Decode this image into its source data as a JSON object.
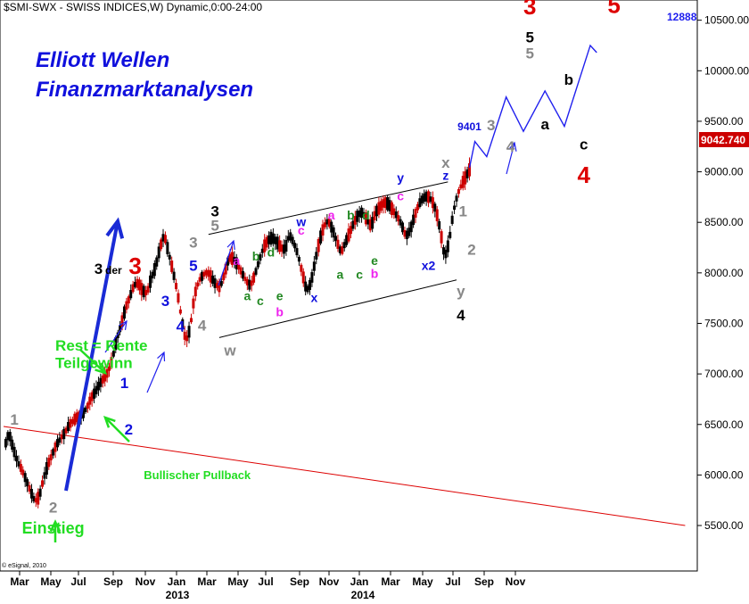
{
  "header": {
    "title": "$SMI-SWX - SWISS INDICES,W) Dynamic,0:00-24:00"
  },
  "headline": {
    "line1": "Elliott Wellen",
    "line2": "Finanzmarktanalysen"
  },
  "copyright": "© eSignal, 2010",
  "colors": {
    "up_candle": "#000000",
    "down_candle": "#cc0000",
    "price_line": "#0000ff",
    "forecast": "#2020ee",
    "channel": "#000000",
    "trendline": "#dd0000",
    "note": "#22dd22",
    "last_price_bg": "#cc0000"
  },
  "chart_data": {
    "type": "candlestick",
    "y_axis": {
      "ylim": [
        5050,
        10700
      ],
      "ticks": [
        5500,
        6000,
        6500,
        7000,
        7500,
        8000,
        8500,
        9000,
        9500,
        10000,
        10500
      ],
      "tick_labels": [
        "5500.00",
        "6000.00",
        "6500.00",
        "7000.00",
        "7500.00",
        "8000.00",
        "8500.00",
        "9000.00",
        "9500.00",
        "10000.00",
        "10500.00"
      ],
      "side": "right"
    },
    "x_axis": {
      "months": [
        "Mar",
        "May",
        "Jul",
        "Sep",
        "Nov",
        "Jan",
        "Mar",
        "May",
        "Jul",
        "Sep",
        "Nov",
        "Jan",
        "Mar",
        "May",
        "Jul",
        "Sep",
        "Nov"
      ],
      "years": [
        "2013",
        "2014"
      ]
    },
    "last_price": "9042.740",
    "forecast_target_label": "12888",
    "forecast_point_label": "9401",
    "price_path": [
      [
        0,
        6280
      ],
      [
        4,
        6420
      ],
      [
        8,
        6260
      ],
      [
        12,
        6130
      ],
      [
        16,
        6050
      ],
      [
        20,
        5950
      ],
      [
        24,
        5840
      ],
      [
        28,
        5740
      ],
      [
        32,
        5780
      ],
      [
        36,
        5960
      ],
      [
        40,
        6100
      ],
      [
        44,
        6200
      ],
      [
        48,
        6300
      ],
      [
        52,
        6360
      ],
      [
        56,
        6420
      ],
      [
        60,
        6500
      ],
      [
        64,
        6540
      ],
      [
        68,
        6580
      ],
      [
        72,
        6600
      ],
      [
        76,
        6660
      ],
      [
        80,
        6760
      ],
      [
        84,
        6820
      ],
      [
        88,
        6900
      ],
      [
        92,
        6960
      ],
      [
        96,
        7020
      ],
      [
        100,
        7150
      ],
      [
        104,
        7350
      ],
      [
        108,
        7480
      ],
      [
        112,
        7650
      ],
      [
        116,
        7760
      ],
      [
        120,
        7880
      ],
      [
        124,
        7900
      ],
      [
        128,
        7820
      ],
      [
        132,
        7800
      ],
      [
        136,
        7950
      ],
      [
        140,
        8060
      ],
      [
        144,
        8250
      ],
      [
        148,
        8380
      ],
      [
        152,
        8200
      ],
      [
        156,
        8020
      ],
      [
        160,
        7820
      ],
      [
        164,
        7550
      ],
      [
        168,
        7320
      ],
      [
        172,
        7450
      ],
      [
        176,
        7780
      ],
      [
        180,
        7920
      ],
      [
        184,
        7980
      ],
      [
        188,
        8010
      ],
      [
        192,
        7950
      ],
      [
        196,
        7880
      ],
      [
        200,
        7860
      ],
      [
        204,
        8000
      ],
      [
        208,
        8150
      ],
      [
        212,
        8140
      ],
      [
        216,
        8080
      ],
      [
        220,
        8000
      ],
      [
        224,
        7920
      ],
      [
        228,
        7870
      ],
      [
        232,
        7980
      ],
      [
        236,
        8120
      ],
      [
        240,
        8250
      ],
      [
        244,
        8320
      ],
      [
        248,
        8350
      ],
      [
        252,
        8310
      ],
      [
        256,
        8250
      ],
      [
        260,
        8230
      ],
      [
        264,
        8380
      ],
      [
        268,
        8300
      ],
      [
        272,
        8180
      ],
      [
        276,
        8000
      ],
      [
        280,
        7820
      ],
      [
        284,
        7900
      ],
      [
        288,
        8120
      ],
      [
        292,
        8320
      ],
      [
        296,
        8460
      ],
      [
        300,
        8520
      ],
      [
        304,
        8430
      ],
      [
        308,
        8310
      ],
      [
        312,
        8200
      ],
      [
        316,
        8300
      ],
      [
        320,
        8400
      ],
      [
        324,
        8500
      ],
      [
        328,
        8580
      ],
      [
        332,
        8600
      ],
      [
        336,
        8520
      ],
      [
        340,
        8460
      ],
      [
        344,
        8600
      ],
      [
        348,
        8650
      ],
      [
        352,
        8700
      ],
      [
        356,
        8680
      ],
      [
        360,
        8620
      ],
      [
        364,
        8560
      ],
      [
        368,
        8480
      ],
      [
        372,
        8360
      ],
      [
        376,
        8420
      ],
      [
        380,
        8560
      ],
      [
        384,
        8680
      ],
      [
        388,
        8740
      ],
      [
        392,
        8760
      ],
      [
        396,
        8720
      ],
      [
        400,
        8620
      ],
      [
        404,
        8420
      ],
      [
        408,
        8150
      ],
      [
        412,
        8300
      ],
      [
        416,
        8600
      ],
      [
        420,
        8780
      ],
      [
        424,
        8880
      ],
      [
        428,
        8960
      ],
      [
        432,
        9040
      ]
    ],
    "forecast_path": [
      [
        432,
        9040
      ],
      [
        437,
        9300
      ],
      [
        448,
        9150
      ],
      [
        466,
        9740
      ],
      [
        482,
        9400
      ],
      [
        502,
        9800
      ],
      [
        520,
        9450
      ],
      [
        544,
        10250
      ],
      [
        550,
        10180
      ]
    ],
    "channel_lines": [
      {
        "name": "upper",
        "from": [
          190,
          8380
        ],
        "to": [
          412,
          8900
        ]
      },
      {
        "name": "lower",
        "from": [
          200,
          7360
        ],
        "to": [
          420,
          7930
        ]
      }
    ],
    "trendline": {
      "from": [
        0,
        6480
      ],
      "to": [
        632,
        5500
      ]
    },
    "wave_labels": [
      {
        "text": "1",
        "x": 10,
        "y": 6500,
        "color": "#888888",
        "size": 17
      },
      {
        "text": "2",
        "x": 46,
        "y": 5630,
        "color": "#888888",
        "size": 17
      },
      {
        "text": "Einstieg",
        "x": 46,
        "y": 5420,
        "color": "#22dd22",
        "size": 18
      },
      {
        "text": "1",
        "x": 112,
        "y": 6860,
        "color": "#1010dd",
        "size": 17
      },
      {
        "text": "2",
        "x": 116,
        "y": 6400,
        "color": "#1010dd",
        "size": 17
      },
      {
        "text": "3",
        "x": 150,
        "y": 7670,
        "color": "#1010dd",
        "size": 17
      },
      {
        "text": "4",
        "x": 164,
        "y": 7420,
        "color": "#1010dd",
        "size": 17
      },
      {
        "text": "3",
        "x": 176,
        "y": 8250,
        "color": "#888888",
        "size": 17
      },
      {
        "text": "5",
        "x": 176,
        "y": 8020,
        "color": "#1010dd",
        "size": 17
      },
      {
        "text": "4",
        "x": 184,
        "y": 7430,
        "color": "#888888",
        "size": 17
      },
      {
        "text": "3",
        "x": 196,
        "y": 8560,
        "color": "#000000",
        "size": 17
      },
      {
        "text": "5",
        "x": 196,
        "y": 8420,
        "color": "#888888",
        "size": 17
      },
      {
        "text": "w",
        "x": 210,
        "y": 7180,
        "color": "#888888",
        "size": 17
      },
      {
        "text": "a",
        "x": 216,
        "y": 8080,
        "color": "#ee22ee",
        "size": 14
      },
      {
        "text": "b",
        "x": 234,
        "y": 8120,
        "color": "#228822",
        "size": 14
      },
      {
        "text": "d",
        "x": 248,
        "y": 8160,
        "color": "#228822",
        "size": 14
      },
      {
        "text": "a",
        "x": 226,
        "y": 7730,
        "color": "#228822",
        "size": 14
      },
      {
        "text": "c",
        "x": 238,
        "y": 7680,
        "color": "#228822",
        "size": 14
      },
      {
        "text": "e",
        "x": 256,
        "y": 7730,
        "color": "#228822",
        "size": 14
      },
      {
        "text": "b",
        "x": 256,
        "y": 7570,
        "color": "#ee22ee",
        "size": 14
      },
      {
        "text": "w",
        "x": 276,
        "y": 8460,
        "color": "#1010dd",
        "size": 14
      },
      {
        "text": "c",
        "x": 276,
        "y": 8380,
        "color": "#ee22ee",
        "size": 14
      },
      {
        "text": "x",
        "x": 288,
        "y": 7710,
        "color": "#1010dd",
        "size": 14
      },
      {
        "text": "a",
        "x": 304,
        "y": 8530,
        "color": "#ee22ee",
        "size": 14
      },
      {
        "text": "b",
        "x": 322,
        "y": 8530,
        "color": "#228822",
        "size": 14
      },
      {
        "text": "d",
        "x": 336,
        "y": 8530,
        "color": "#228822",
        "size": 14
      },
      {
        "text": "a",
        "x": 312,
        "y": 7940,
        "color": "#228822",
        "size": 14
      },
      {
        "text": "c",
        "x": 330,
        "y": 7940,
        "color": "#228822",
        "size": 14
      },
      {
        "text": "e",
        "x": 344,
        "y": 8080,
        "color": "#228822",
        "size": 14
      },
      {
        "text": "b",
        "x": 344,
        "y": 7950,
        "color": "#ee22ee",
        "size": 14
      },
      {
        "text": "y",
        "x": 368,
        "y": 8900,
        "color": "#1010dd",
        "size": 14
      },
      {
        "text": "c",
        "x": 368,
        "y": 8720,
        "color": "#ee22ee",
        "size": 14
      },
      {
        "text": "x2",
        "x": 394,
        "y": 8030,
        "color": "#1010dd",
        "size": 14
      },
      {
        "text": "x",
        "x": 410,
        "y": 9040,
        "color": "#888888",
        "size": 17
      },
      {
        "text": "z",
        "x": 410,
        "y": 8920,
        "color": "#1010dd",
        "size": 14
      },
      {
        "text": "1",
        "x": 426,
        "y": 8560,
        "color": "#888888",
        "size": 17
      },
      {
        "text": "2",
        "x": 434,
        "y": 8180,
        "color": "#888888",
        "size": 17
      },
      {
        "text": "y",
        "x": 424,
        "y": 7770,
        "color": "#888888",
        "size": 17
      },
      {
        "text": "4",
        "x": 424,
        "y": 7530,
        "color": "#000000",
        "size": 17
      },
      {
        "text": "3",
        "x": 452,
        "y": 9410,
        "color": "#888888",
        "size": 17
      },
      {
        "text": "9401",
        "x": 432,
        "y": 9410,
        "color": "#1010dd",
        "size": 12
      },
      {
        "text": "4",
        "x": 470,
        "y": 9200,
        "color": "#888888",
        "size": 17
      },
      {
        "text": "3",
        "x": 488,
        "y": 10560,
        "color": "#dd0000",
        "size": 26
      },
      {
        "text": "5",
        "x": 488,
        "y": 10280,
        "color": "#000000",
        "size": 17
      },
      {
        "text": "5",
        "x": 488,
        "y": 10120,
        "color": "#888888",
        "size": 17
      },
      {
        "text": "a",
        "x": 502,
        "y": 9420,
        "color": "#000000",
        "size": 17
      },
      {
        "text": "b",
        "x": 524,
        "y": 9860,
        "color": "#000000",
        "size": 17
      },
      {
        "text": "c",
        "x": 538,
        "y": 9220,
        "color": "#000000",
        "size": 17
      },
      {
        "text": "4",
        "x": 538,
        "y": 8890,
        "color": "#dd0000",
        "size": 26
      },
      {
        "text": "5",
        "x": 566,
        "y": 10570,
        "color": "#dd0000",
        "size": 26
      },
      {
        "text": "3",
        "x": 88,
        "y": 7990,
        "color": "#000000",
        "size": 17
      },
      {
        "text": "der",
        "x": 102,
        "y": 7990,
        "color": "#000000",
        "size": 12
      },
      {
        "text": "3",
        "x": 122,
        "y": 7990,
        "color": "#dd0000",
        "size": 26
      }
    ],
    "annotations": [
      {
        "text": "Rest = Rente",
        "x": 48,
        "y": 7230,
        "color": "#22dd22",
        "size": 17
      },
      {
        "text": "Teilgewinn",
        "x": 48,
        "y": 7060,
        "color": "#22dd22",
        "size": 17
      },
      {
        "text": "Bullischer Pullback",
        "x": 130,
        "y": 5960,
        "color": "#22dd22",
        "size": 13
      }
    ]
  }
}
